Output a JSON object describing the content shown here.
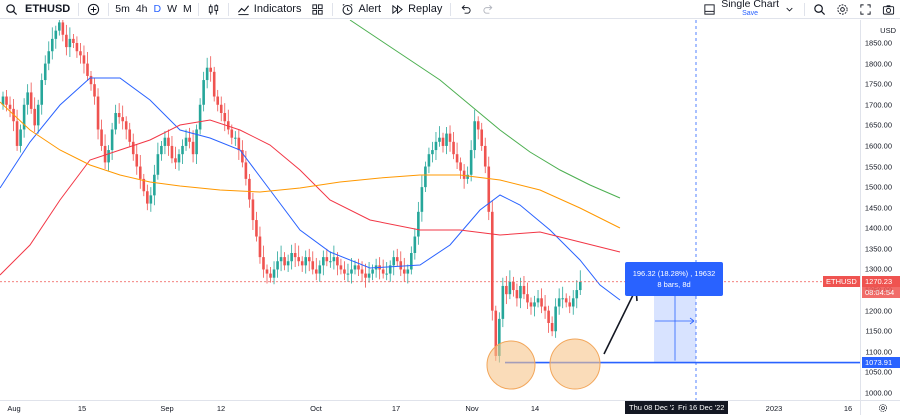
{
  "toolbar": {
    "symbol": "ETHUSD",
    "add_symbol_icon": "plus-circle-icon",
    "timeframes": [
      {
        "label": "5m",
        "active": false
      },
      {
        "label": "4h",
        "active": false
      },
      {
        "label": "D",
        "active": true
      },
      {
        "label": "W",
        "active": false
      },
      {
        "label": "M",
        "active": false
      }
    ],
    "chart_type_icon": "candles-icon",
    "indicators_label": "Indicators",
    "templates_icon": "grid-icon",
    "alert_label": "Alert",
    "replay_label": "Replay",
    "undo_icon": "undo-icon",
    "redo_icon": "redo-icon",
    "layout_title": "Single Chart",
    "layout_status": "Save",
    "search_icon": "search-icon",
    "settings_icon": "gear-icon",
    "fullscreen_icon": "fullscreen-icon",
    "snapshot_icon": "camera-icon"
  },
  "price_scale": {
    "currency": "USD",
    "ticks": [
      "1850.00",
      "1800.00",
      "1750.00",
      "1700.00",
      "1650.00",
      "1600.00",
      "1550.00",
      "1500.00",
      "1450.00",
      "1400.00",
      "1350.00",
      "1300.00",
      "1250.00",
      "1200.00",
      "1150.00",
      "1100.00",
      "1050.00",
      "1000.00"
    ],
    "last_symbol": "ETHUSD",
    "last_price": "1270.23",
    "countdown": "08:04:54",
    "support_price": "1073.91"
  },
  "time_scale": {
    "ticks": [
      "Aug",
      "15",
      "Sep",
      "12",
      "Oct",
      "17",
      "Nov",
      "14",
      "2023",
      "16"
    ],
    "range_start": "Thu 08 Dec '22",
    "range_end": "Fri 16 Dec '22",
    "settings_icon": "gear-icon"
  },
  "measure": {
    "line1": "196.32 (18.28%) , 19632",
    "line2": "8 bars, 8d"
  },
  "colors": {
    "up": "#26a69a",
    "down": "#ef5350",
    "ma_fast": "#2962ff",
    "ma_mid": "#f23645",
    "ma_slow_orange": "#ff9800",
    "ma_slowest": "#4caf50",
    "accent": "#2962ff",
    "highlight": "#f7c48b"
  }
}
